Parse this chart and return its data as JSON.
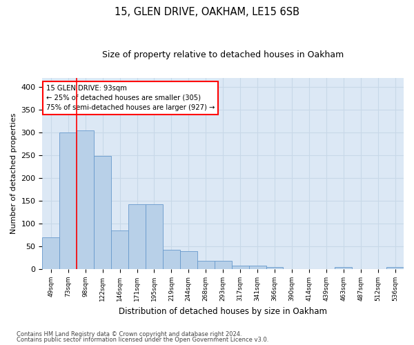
{
  "title1": "15, GLEN DRIVE, OAKHAM, LE15 6SB",
  "title2": "Size of property relative to detached houses in Oakham",
  "xlabel": "Distribution of detached houses by size in Oakham",
  "ylabel": "Number of detached properties",
  "footnote1": "Contains HM Land Registry data © Crown copyright and database right 2024.",
  "footnote2": "Contains public sector information licensed under the Open Government Licence v3.0.",
  "annotation_line1": "15 GLEN DRIVE: 93sqm",
  "annotation_line2": "← 25% of detached houses are smaller (305)",
  "annotation_line3": "75% of semi-detached houses are larger (927) →",
  "bar_categories": [
    "49sqm",
    "73sqm",
    "98sqm",
    "122sqm",
    "146sqm",
    "171sqm",
    "195sqm",
    "219sqm",
    "244sqm",
    "268sqm",
    "293sqm",
    "317sqm",
    "341sqm",
    "366sqm",
    "390sqm",
    "414sqm",
    "439sqm",
    "463sqm",
    "487sqm",
    "512sqm",
    "536sqm"
  ],
  "bar_values": [
    70,
    300,
    305,
    248,
    85,
    143,
    143,
    42,
    40,
    18,
    18,
    8,
    8,
    5,
    0,
    0,
    0,
    5,
    0,
    0,
    5
  ],
  "bar_color": "#b8d0e8",
  "bar_edge_color": "#6699cc",
  "vline_color": "red",
  "vline_x": 1.5,
  "ylim": [
    0,
    420
  ],
  "yticks": [
    0,
    50,
    100,
    150,
    200,
    250,
    300,
    350,
    400
  ],
  "bg_color": "#dce8f5",
  "annotation_box_color": "white",
  "annotation_box_edge": "red",
  "grid_color": "#c8d8e8"
}
